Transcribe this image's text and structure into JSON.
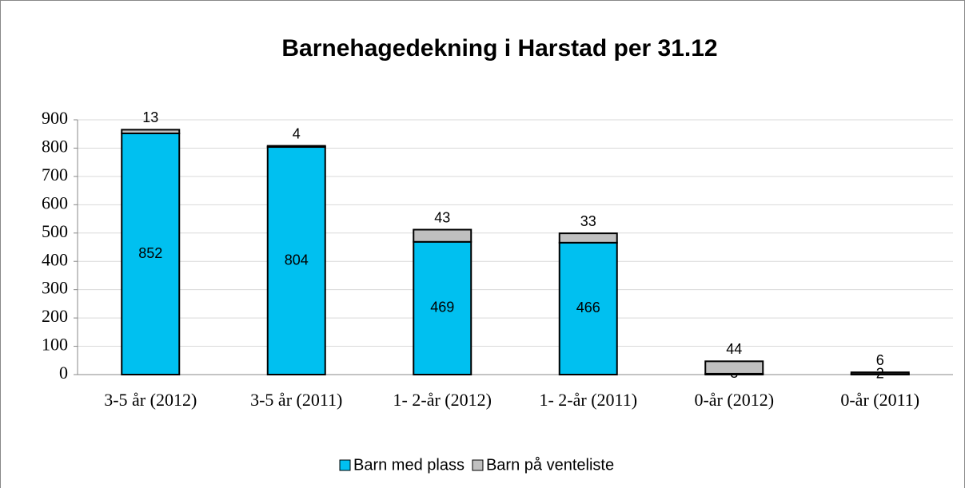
{
  "chart_data": {
    "type": "stacked_bar",
    "title": "Barnehagedekning i Harstad per 31.12",
    "categories": [
      "3-5 år (2012)",
      "3-5 år (2011)",
      "1- 2-år (2012)",
      "1- 2-år (2011)",
      "0-år (2012)",
      "0-år (2011)"
    ],
    "series": [
      {
        "name": "Barn med plass",
        "color": "#00c0f0",
        "values": [
          852,
          804,
          469,
          466,
          3,
          2
        ]
      },
      {
        "name": "Barn på venteliste",
        "color": "#c0c0c0",
        "values": [
          13,
          4,
          43,
          33,
          44,
          6
        ]
      }
    ],
    "ylim": [
      0,
      900
    ],
    "yticks": [
      0,
      100,
      200,
      300,
      400,
      500,
      600,
      700,
      800,
      900
    ],
    "grid": true,
    "legend": "bottom"
  }
}
